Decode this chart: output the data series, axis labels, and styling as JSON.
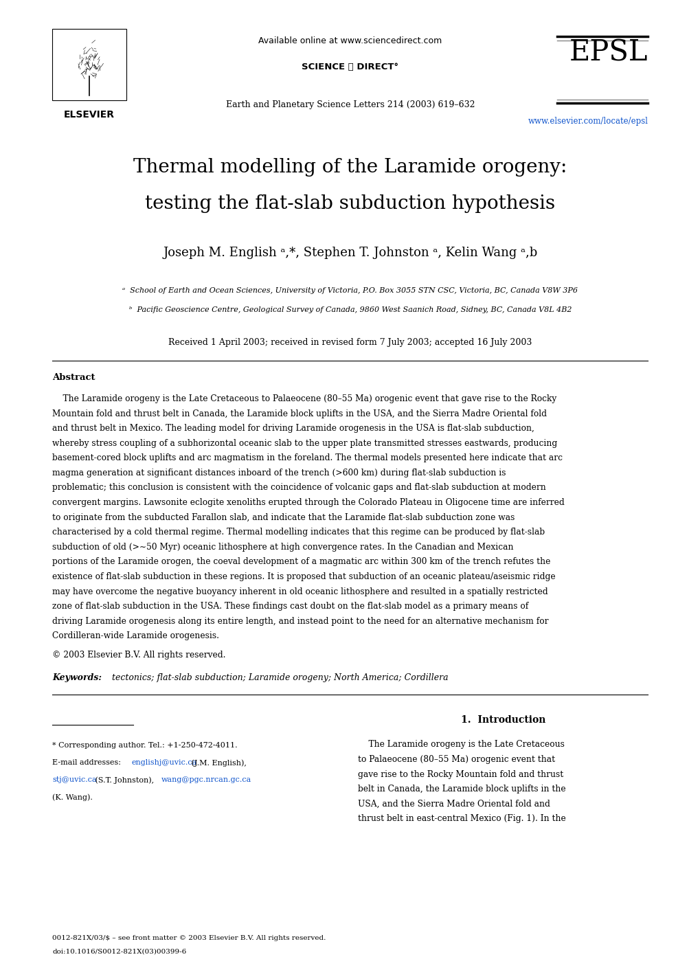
{
  "bg_color": "#ffffff",
  "page_width": 10.2,
  "page_height": 13.93,
  "available_text": "Available online at www.sciencedirect.com",
  "sciencedirect_text": "SCIENCE ⓐ DIRECT°",
  "journal_line": "Earth and Planetary Science Letters 214 (2003) 619–632",
  "epsl_text": "EPSL",
  "url_text": "www.elsevier.com/locate/epsl",
  "elsevier_text": "ELSEVIER",
  "title_line1": "Thermal modelling of the Laramide orogeny:",
  "title_line2": "testing the flat-slab subduction hypothesis",
  "authors": "Joseph M. English ᵃ,*, Stephen T. Johnston ᵃ, Kelin Wang ᵃ,b",
  "affil_a": "ᵃ  School of Earth and Ocean Sciences, University of Victoria, P.O. Box 3055 STN CSC, Victoria, BC, Canada V8W 3P6",
  "affil_b": "ᵇ  Pacific Geoscience Centre, Geological Survey of Canada, 9860 West Saanich Road, Sidney, BC, Canada V8L 4B2",
  "received": "Received 1 April 2003; received in revised form 7 July 2003; accepted 16 July 2003",
  "abstract_title": "Abstract",
  "abstract_lines": [
    "    The Laramide orogeny is the Late Cretaceous to Palaeocene (80–55 Ma) orogenic event that gave rise to the Rocky",
    "Mountain fold and thrust belt in Canada, the Laramide block uplifts in the USA, and the Sierra Madre Oriental fold",
    "and thrust belt in Mexico. The leading model for driving Laramide orogenesis in the USA is flat-slab subduction,",
    "whereby stress coupling of a subhorizontal oceanic slab to the upper plate transmitted stresses eastwards, producing",
    "basement-cored block uplifts and arc magmatism in the foreland. The thermal models presented here indicate that arc",
    "magma generation at significant distances inboard of the trench (>600 km) during flat-slab subduction is",
    "problematic; this conclusion is consistent with the coincidence of volcanic gaps and flat-slab subduction at modern",
    "convergent margins. Lawsonite eclogite xenoliths erupted through the Colorado Plateau in Oligocene time are inferred",
    "to originate from the subducted Farallon slab, and indicate that the Laramide flat-slab subduction zone was",
    "characterised by a cold thermal regime. Thermal modelling indicates that this regime can be produced by flat-slab",
    "subduction of old (>∼50 Myr) oceanic lithosphere at high convergence rates. In the Canadian and Mexican",
    "portions of the Laramide orogen, the coeval development of a magmatic arc within 300 km of the trench refutes the",
    "existence of flat-slab subduction in these regions. It is proposed that subduction of an oceanic plateau/aseismic ridge",
    "may have overcome the negative buoyancy inherent in old oceanic lithosphere and resulted in a spatially restricted",
    "zone of flat-slab subduction in the USA. These findings cast doubt on the flat-slab model as a primary means of",
    "driving Laramide orogenesis along its entire length, and instead point to the need for an alternative mechanism for",
    "Cordilleran-wide Laramide orogenesis."
  ],
  "copyright": "© 2003 Elsevier B.V. All rights reserved.",
  "keywords_label": "Keywords:",
  "keywords_body": "  tectonics; flat-slab subduction; Laramide orogeny; North America; Cordillera",
  "section1_title": "1.  Introduction",
  "intro_lines": [
    "    The Laramide orogeny is the Late Cretaceous",
    "to Palaeocene (80–55 Ma) orogenic event that",
    "gave rise to the Rocky Mountain fold and thrust",
    "belt in Canada, the Laramide block uplifts in the",
    "USA, and the Sierra Madre Oriental fold and",
    "thrust belt in east-central Mexico (Fig. 1). In the"
  ],
  "footnote_star": "* Corresponding author. Tel.: +1-250-472-4011.",
  "footnote_email_label": "E-mail addresses: ",
  "footnote_email1_link": "englishj@uvic.ca",
  "footnote_email1_rest": " (J.M. English),",
  "footnote_line2_link1": "stj@uvic.ca",
  "footnote_line2_mid": " (S.T. Johnston), ",
  "footnote_line2_link2": "wang@pgc.nrcan.gc.ca",
  "footnote_line3": "(K. Wang).",
  "footer_line1": "0012-821X/03/$ – see front matter © 2003 Elsevier B.V. All rights reserved.",
  "footer_line2": "doi:10.1016/S0012-821X(03)00399-6",
  "url_color": "#1155cc",
  "text_color": "#000000"
}
